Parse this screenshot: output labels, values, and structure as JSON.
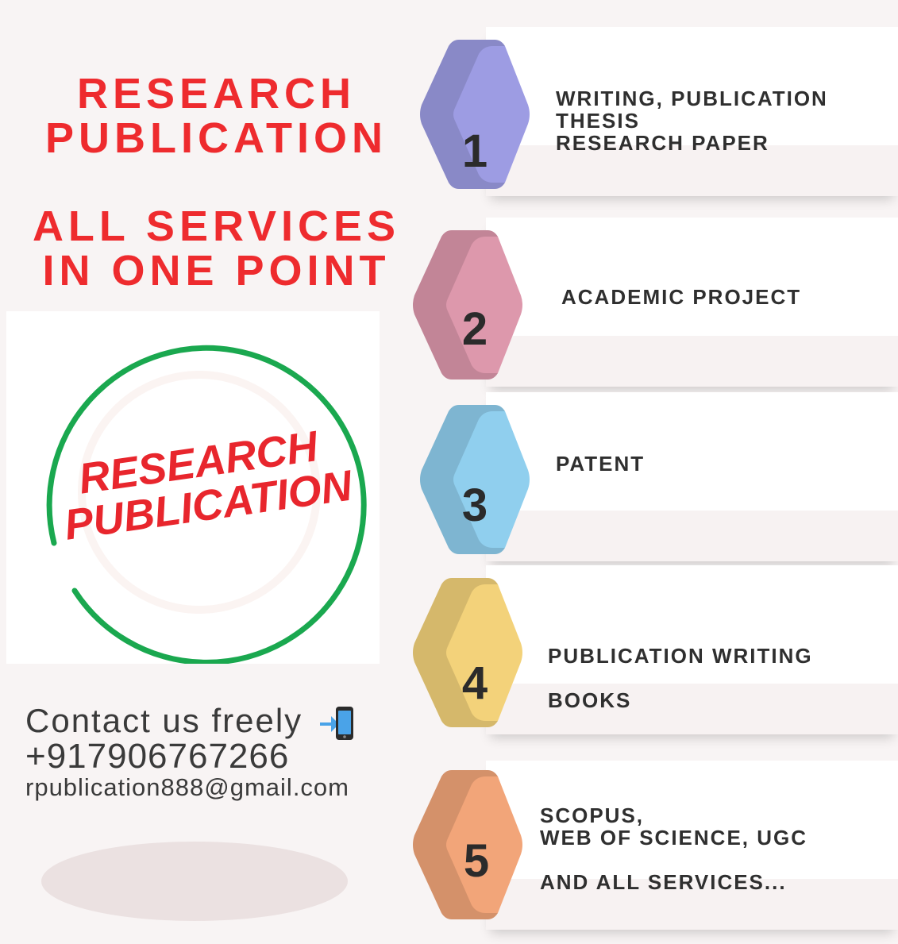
{
  "headline": {
    "line1": "RESEARCH",
    "line2": "PUBLICATION",
    "line3": "ALL SERVICES",
    "line4": "IN ONE POINT"
  },
  "logo": {
    "line1": "RESEARCH",
    "line2": "PUBLICATION",
    "ring_color": "#1aa84f",
    "text_color": "#e8262d"
  },
  "contact": {
    "title": "Contact us freely",
    "phone": "+917906767266",
    "email": "rpublication888@gmail.com"
  },
  "services": [
    {
      "number": "1",
      "color": "#9d9ce3",
      "lines": [
        "WRITING, PUBLICATION",
        "THESIS",
        "RESEARCH PAPER"
      ]
    },
    {
      "number": "2",
      "color": "#dd98ac",
      "lines": [
        "ACADEMIC PROJECT"
      ]
    },
    {
      "number": "3",
      "color": "#90cfee",
      "lines": [
        "PATENT"
      ]
    },
    {
      "number": "4",
      "color": "#f3d27a",
      "lines": [
        "PUBLICATION WRITING",
        "BOOKS"
      ]
    },
    {
      "number": "5",
      "color": "#f2a579",
      "lines": [
        "SCOPUS,",
        "WEB OF SCIENCE, UGC",
        "AND ALL SERVICES..."
      ]
    }
  ],
  "colors": {
    "headline": "#ee2b2e",
    "background": "#f8f4f4"
  }
}
